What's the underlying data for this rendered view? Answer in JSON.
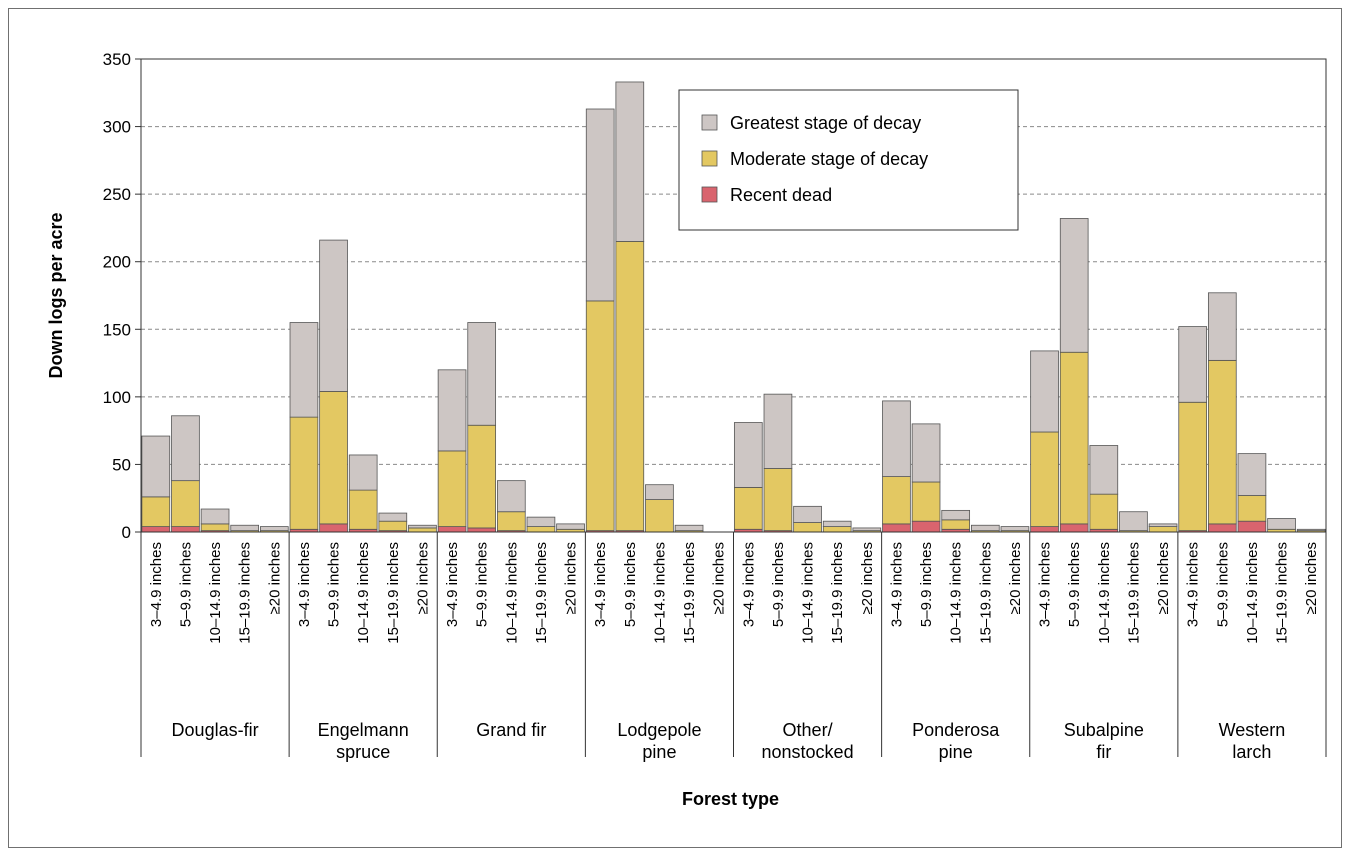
{
  "chart_data": {
    "type": "bar",
    "stacked": true,
    "title": "",
    "xlabel": "Forest type",
    "ylabel": "Down logs per acre",
    "ylim": [
      0,
      350
    ],
    "yticks": [
      0,
      50,
      100,
      150,
      200,
      250,
      300,
      350
    ],
    "grid": true,
    "legend_position": "top-center",
    "size_classes": [
      "3–4.9 inches",
      "5–9.9 inches",
      "10–14.9 inches",
      "15–19.9 inches",
      "≥20 inches"
    ],
    "series": [
      {
        "name": "Recent dead",
        "color": "#d9646e"
      },
      {
        "name": "Moderate stage of decay",
        "color": "#e3c862"
      },
      {
        "name": "Greatest stage of decay",
        "color": "#cdc6c4"
      }
    ],
    "legend_order": [
      "Greatest stage of decay",
      "Moderate stage of decay",
      "Recent dead"
    ],
    "groups": [
      {
        "label": [
          "Douglas-fir"
        ],
        "bars": [
          {
            "recent": 4,
            "moderate": 22,
            "greatest": 45
          },
          {
            "recent": 4,
            "moderate": 34,
            "greatest": 48
          },
          {
            "recent": 1,
            "moderate": 5,
            "greatest": 11
          },
          {
            "recent": 0,
            "moderate": 1,
            "greatest": 4
          },
          {
            "recent": 0,
            "moderate": 1,
            "greatest": 3
          }
        ]
      },
      {
        "label": [
          "Engelmann",
          "spruce"
        ],
        "bars": [
          {
            "recent": 2,
            "moderate": 83,
            "greatest": 70
          },
          {
            "recent": 6,
            "moderate": 98,
            "greatest": 112
          },
          {
            "recent": 2,
            "moderate": 29,
            "greatest": 26
          },
          {
            "recent": 1,
            "moderate": 7,
            "greatest": 6
          },
          {
            "recent": 0,
            "moderate": 3,
            "greatest": 2
          }
        ]
      },
      {
        "label": [
          "Grand fir"
        ],
        "bars": [
          {
            "recent": 4,
            "moderate": 56,
            "greatest": 60
          },
          {
            "recent": 3,
            "moderate": 76,
            "greatest": 76
          },
          {
            "recent": 1,
            "moderate": 14,
            "greatest": 23
          },
          {
            "recent": 0,
            "moderate": 4,
            "greatest": 7
          },
          {
            "recent": 0,
            "moderate": 2,
            "greatest": 4
          }
        ]
      },
      {
        "label": [
          "Lodgepole",
          "pine"
        ],
        "bars": [
          {
            "recent": 1,
            "moderate": 170,
            "greatest": 142
          },
          {
            "recent": 1,
            "moderate": 214,
            "greatest": 118
          },
          {
            "recent": 0,
            "moderate": 24,
            "greatest": 11
          },
          {
            "recent": 0,
            "moderate": 1,
            "greatest": 4
          },
          {
            "recent": 0,
            "moderate": 0,
            "greatest": 0
          }
        ]
      },
      {
        "label": [
          "Other/",
          "nonstocked"
        ],
        "bars": [
          {
            "recent": 2,
            "moderate": 31,
            "greatest": 48
          },
          {
            "recent": 1,
            "moderate": 46,
            "greatest": 55
          },
          {
            "recent": 0,
            "moderate": 7,
            "greatest": 12
          },
          {
            "recent": 0,
            "moderate": 4,
            "greatest": 4
          },
          {
            "recent": 0,
            "moderate": 1,
            "greatest": 2
          }
        ]
      },
      {
        "label": [
          "Ponderosa",
          "pine"
        ],
        "bars": [
          {
            "recent": 6,
            "moderate": 35,
            "greatest": 56
          },
          {
            "recent": 8,
            "moderate": 29,
            "greatest": 43
          },
          {
            "recent": 2,
            "moderate": 7,
            "greatest": 7
          },
          {
            "recent": 0,
            "moderate": 1,
            "greatest": 4
          },
          {
            "recent": 0,
            "moderate": 1,
            "greatest": 3
          }
        ]
      },
      {
        "label": [
          "Subalpine",
          "fir"
        ],
        "bars": [
          {
            "recent": 4,
            "moderate": 70,
            "greatest": 60
          },
          {
            "recent": 6,
            "moderate": 127,
            "greatest": 99
          },
          {
            "recent": 2,
            "moderate": 26,
            "greatest": 36
          },
          {
            "recent": 0,
            "moderate": 1,
            "greatest": 14
          },
          {
            "recent": 0,
            "moderate": 4,
            "greatest": 2
          }
        ]
      },
      {
        "label": [
          "Western",
          "larch"
        ],
        "bars": [
          {
            "recent": 1,
            "moderate": 95,
            "greatest": 56
          },
          {
            "recent": 6,
            "moderate": 121,
            "greatest": 50
          },
          {
            "recent": 8,
            "moderate": 19,
            "greatest": 31
          },
          {
            "recent": 0,
            "moderate": 2,
            "greatest": 8
          },
          {
            "recent": 0,
            "moderate": 1,
            "greatest": 1
          }
        ]
      }
    ]
  }
}
